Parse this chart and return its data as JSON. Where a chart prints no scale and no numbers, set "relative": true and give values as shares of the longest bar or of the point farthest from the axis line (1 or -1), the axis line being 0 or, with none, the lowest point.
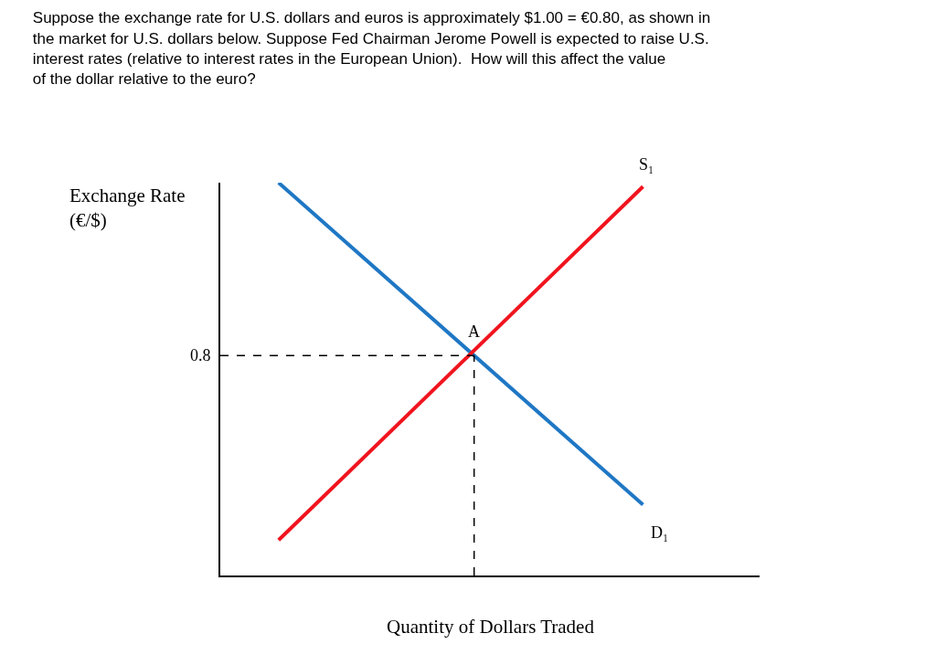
{
  "chart_data": {
    "type": "line",
    "title": "Suppose the exchange rate for U.S. dollars and euros is approximately $1.00 = €0.80, as shown in the market for U.S. dollars below. Suppose Fed Chairman Jerome Powell is expected to raise U.S. interest rates (relative to interest rates in the European Union).  How will this affect the value of the dollar relative to the euro?",
    "xlabel": "Quantity of Dollars Traded",
    "ylabel": "Exchange Rate (€/$)",
    "relative": true,
    "categories": [
      null,
      null
    ],
    "legend": false,
    "marker": "none",
    "line_style": "solid",
    "series": [
      {
        "name": "D₁",
        "color": "#1f77c4",
        "values": [
          1.0,
          0.18
        ]
      },
      {
        "name": "S₁",
        "color": "#f0141e",
        "values": [
          0.09,
          0.99
        ]
      }
    ],
    "ref_lines": [
      {
        "axis": "y",
        "value": 0.56,
        "line_style": "dashed",
        "color": "#000000"
      }
    ],
    "annotations": [
      "A",
      "0.8"
    ]
  }
}
